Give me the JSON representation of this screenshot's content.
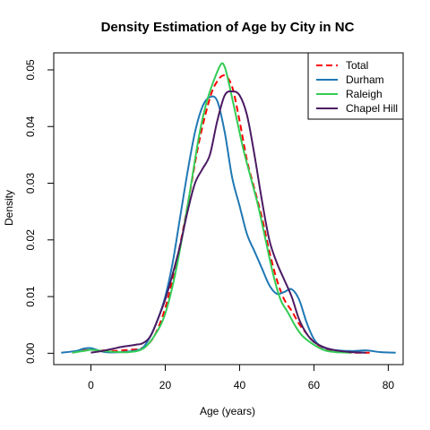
{
  "chart_data": {
    "type": "line",
    "title": "Density Estimation of Age by City in NC",
    "xlabel": "Age (years)",
    "ylabel": "Density",
    "xlim": [
      -10,
      84
    ],
    "ylim": [
      -0.002,
      0.053
    ],
    "x_ticks": [
      0,
      20,
      40,
      60,
      80
    ],
    "x_tick_labels": [
      "0",
      "20",
      "40",
      "60",
      "80"
    ],
    "y_ticks": [
      0.0,
      0.01,
      0.02,
      0.03,
      0.04,
      0.05
    ],
    "y_tick_labels": [
      "0.00",
      "0.01",
      "0.02",
      "0.03",
      "0.04",
      "0.05"
    ],
    "grid": false,
    "legend_position": "top-right",
    "series": [
      {
        "name": "Total",
        "color": "#ff0000",
        "dash": true,
        "points": [
          [
            -5,
            0.0001
          ],
          [
            -2,
            0.0005
          ],
          [
            0,
            0.0006
          ],
          [
            3,
            0.0005
          ],
          [
            6,
            0.0004
          ],
          [
            10,
            0.0006
          ],
          [
            14,
            0.001
          ],
          [
            17,
            0.003
          ],
          [
            20,
            0.008
          ],
          [
            23,
            0.016
          ],
          [
            26,
            0.026
          ],
          [
            29,
            0.037
          ],
          [
            32,
            0.045
          ],
          [
            34,
            0.048
          ],
          [
            36,
            0.049
          ],
          [
            38,
            0.047
          ],
          [
            40,
            0.041
          ],
          [
            42,
            0.034
          ],
          [
            44,
            0.029
          ],
          [
            46,
            0.024
          ],
          [
            48,
            0.018
          ],
          [
            50,
            0.013
          ],
          [
            52,
            0.0095
          ],
          [
            54,
            0.0075
          ],
          [
            56,
            0.0052
          ],
          [
            58,
            0.0035
          ],
          [
            60,
            0.002
          ],
          [
            63,
            0.0008
          ],
          [
            66,
            0.0003
          ],
          [
            70,
            0.0001
          ],
          [
            75,
            0.0001
          ]
        ]
      },
      {
        "name": "Durham",
        "color": "#1f78b4",
        "dash": false,
        "points": [
          [
            -8,
            0.0001
          ],
          [
            -4,
            0.0004
          ],
          [
            -2,
            0.0008
          ],
          [
            0,
            0.0009
          ],
          [
            2,
            0.0005
          ],
          [
            4,
            0.0002
          ],
          [
            8,
            0.0002
          ],
          [
            12,
            0.0005
          ],
          [
            14,
            0.001
          ],
          [
            16,
            0.003
          ],
          [
            18,
            0.006
          ],
          [
            20,
            0.01
          ],
          [
            22,
            0.016
          ],
          [
            24,
            0.024
          ],
          [
            26,
            0.032
          ],
          [
            28,
            0.039
          ],
          [
            30,
            0.0435
          ],
          [
            32,
            0.0452
          ],
          [
            34,
            0.0445
          ],
          [
            36,
            0.039
          ],
          [
            38,
            0.031
          ],
          [
            40,
            0.026
          ],
          [
            42,
            0.021
          ],
          [
            44,
            0.018
          ],
          [
            46,
            0.015
          ],
          [
            48,
            0.012
          ],
          [
            50,
            0.0105
          ],
          [
            52,
            0.0108
          ],
          [
            54,
            0.0113
          ],
          [
            56,
            0.0095
          ],
          [
            58,
            0.0055
          ],
          [
            60,
            0.0025
          ],
          [
            62,
            0.0012
          ],
          [
            65,
            0.0006
          ],
          [
            70,
            0.0004
          ],
          [
            74,
            0.0005
          ],
          [
            78,
            0.0002
          ],
          [
            82,
            0.0001
          ]
        ]
      },
      {
        "name": "Raleigh",
        "color": "#33cc55",
        "dash": false,
        "points": [
          [
            -5,
            0.0001
          ],
          [
            -2,
            0.0004
          ],
          [
            0,
            0.0006
          ],
          [
            2,
            0.0005
          ],
          [
            5,
            0.0003
          ],
          [
            10,
            0.0002
          ],
          [
            14,
            0.0008
          ],
          [
            17,
            0.003
          ],
          [
            20,
            0.007
          ],
          [
            23,
            0.015
          ],
          [
            26,
            0.026
          ],
          [
            29,
            0.038
          ],
          [
            31,
            0.044
          ],
          [
            33,
            0.048
          ],
          [
            35,
            0.051
          ],
          [
            36,
            0.0505
          ],
          [
            37,
            0.048
          ],
          [
            39,
            0.042
          ],
          [
            41,
            0.036
          ],
          [
            43,
            0.031
          ],
          [
            45,
            0.026
          ],
          [
            47,
            0.02
          ],
          [
            49,
            0.014
          ],
          [
            51,
            0.0095
          ],
          [
            53,
            0.0072
          ],
          [
            55,
            0.0048
          ],
          [
            57,
            0.003
          ],
          [
            60,
            0.0015
          ],
          [
            63,
            0.0005
          ],
          [
            66,
            0.0002
          ],
          [
            70,
            0.0001
          ]
        ]
      },
      {
        "name": "Chapel Hill",
        "color": "#4b1a63",
        "dash": false,
        "points": [
          [
            0,
            0.0001
          ],
          [
            3,
            0.0004
          ],
          [
            6,
            0.0008
          ],
          [
            8,
            0.0011
          ],
          [
            10,
            0.0013
          ],
          [
            12,
            0.0015
          ],
          [
            14,
            0.0018
          ],
          [
            16,
            0.003
          ],
          [
            18,
            0.006
          ],
          [
            20,
            0.0095
          ],
          [
            22,
            0.014
          ],
          [
            24,
            0.019
          ],
          [
            26,
            0.025
          ],
          [
            28,
            0.03
          ],
          [
            30,
            0.0325
          ],
          [
            32,
            0.035
          ],
          [
            34,
            0.041
          ],
          [
            36,
            0.0455
          ],
          [
            38,
            0.0462
          ],
          [
            40,
            0.0455
          ],
          [
            42,
            0.042
          ],
          [
            44,
            0.035
          ],
          [
            46,
            0.027
          ],
          [
            48,
            0.02
          ],
          [
            50,
            0.016
          ],
          [
            52,
            0.013
          ],
          [
            54,
            0.01
          ],
          [
            56,
            0.006
          ],
          [
            58,
            0.0035
          ],
          [
            60,
            0.002
          ],
          [
            63,
            0.001
          ],
          [
            66,
            0.0005
          ],
          [
            70,
            0.0002
          ],
          [
            74,
            0.0001
          ]
        ]
      }
    ]
  }
}
